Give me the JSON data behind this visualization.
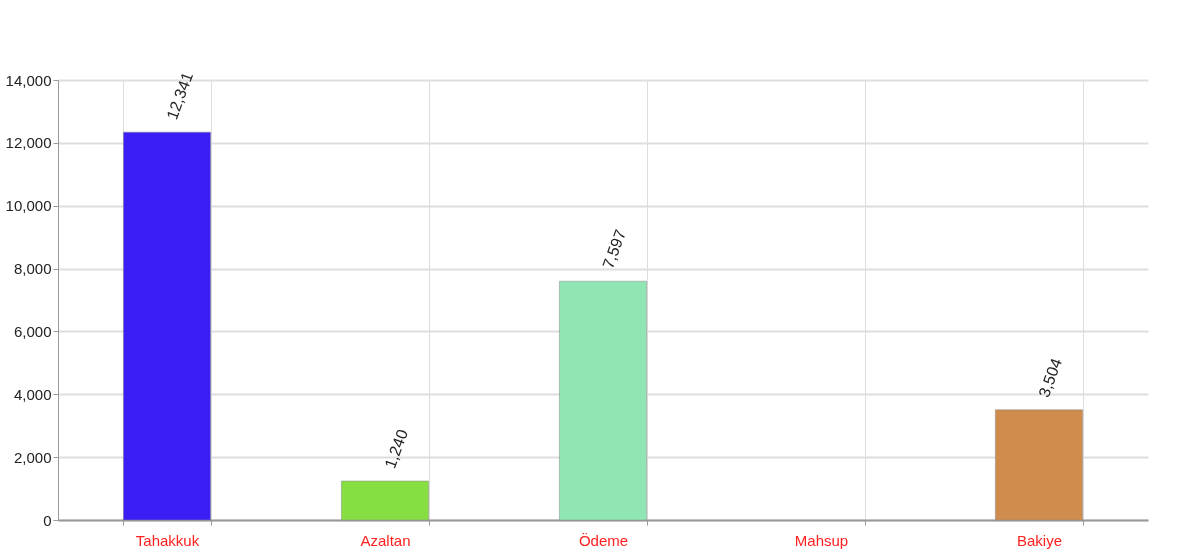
{
  "chart_data": {
    "type": "bar",
    "categories": [
      "Tahakkuk",
      "Azaltan",
      "Ödeme",
      "Mahsup",
      "Bakiye"
    ],
    "values": [
      12341,
      1240,
      7597,
      null,
      3504
    ],
    "value_labels": [
      "12,341",
      "1,240",
      "7,597",
      null,
      "3,504"
    ],
    "colors": [
      "#3b1ef5",
      "#86de42",
      "#8fe6b2",
      null,
      "#d08c4c"
    ],
    "ylim": [
      0,
      14000
    ],
    "yticks": [
      0,
      {
        "value": 2000,
        "label": "2,000"
      },
      {
        "value": 4000,
        "label": "4,000"
      },
      {
        "value": 6000,
        "label": "6,000"
      },
      {
        "value": 8000,
        "label": "8,000"
      },
      {
        "value": 10000,
        "label": "10,000"
      },
      {
        "value": 12000,
        "label": "12,000"
      },
      {
        "value": 14000,
        "label": "14,000"
      }
    ],
    "grid": true
  }
}
